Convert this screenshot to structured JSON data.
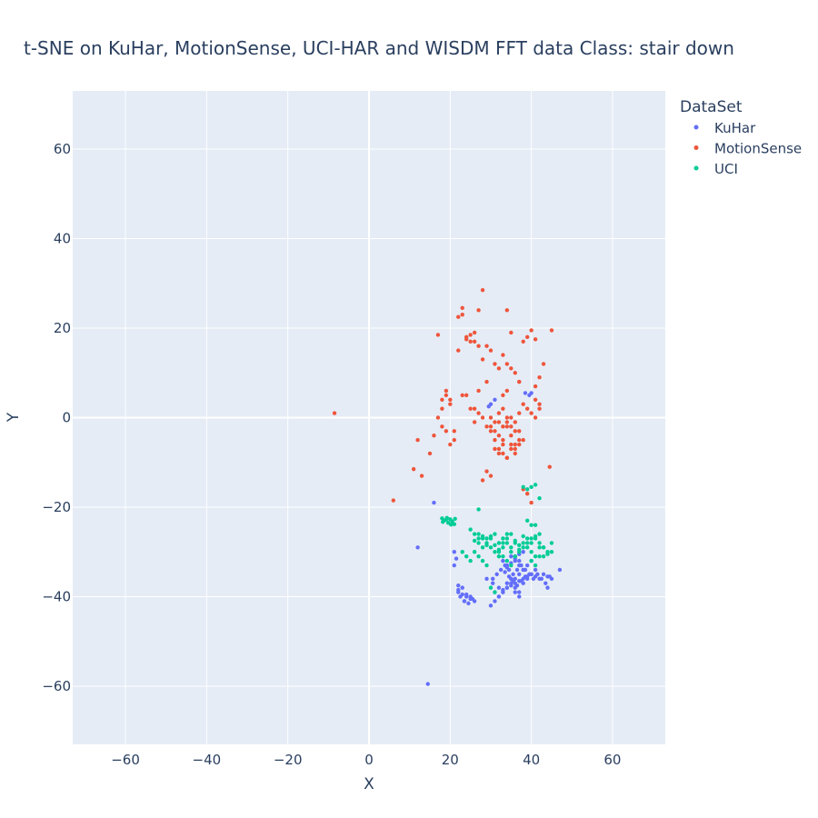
{
  "chart_data": {
    "type": "scatter",
    "title": "t-SNE on KuHar, MotionSense, UCI-HAR and WISDM   FFT data   Class: stair down",
    "xlabel": "X",
    "ylabel": "Y",
    "xlim": [
      -73,
      73
    ],
    "ylim": [
      -73,
      73
    ],
    "xticks": [
      -60,
      -40,
      -20,
      0,
      20,
      40,
      60
    ],
    "yticks": [
      -60,
      -40,
      -20,
      0,
      20,
      40,
      60
    ],
    "grid": true,
    "legend": {
      "title": "DataSet",
      "placement": "top-right"
    },
    "series": [
      {
        "name": "KuHar",
        "color": "#636efa",
        "x": [
          14.5,
          16,
          12,
          30,
          31,
          29.5,
          38.5,
          39.5,
          40,
          29,
          30.5,
          22,
          23,
          24,
          25,
          26,
          22,
          22.5,
          23.5,
          24.5,
          25.5,
          23,
          24,
          25,
          22,
          23.5,
          21,
          21.5,
          21,
          30,
          31,
          32,
          33,
          34,
          35,
          36,
          37,
          38,
          39,
          40,
          41,
          42,
          43,
          44,
          45,
          30.5,
          31.5,
          32.5,
          33.5,
          34.5,
          35.5,
          36.5,
          37.5,
          38.5,
          39.5,
          40.5,
          41.5,
          42.5,
          43.5,
          44.5,
          31,
          32,
          33,
          34,
          35,
          36,
          37,
          38,
          39,
          40,
          41,
          33,
          34,
          35,
          36,
          37,
          38,
          32,
          33,
          34,
          35,
          36,
          37,
          38,
          39,
          40,
          33.5,
          34.5,
          35.5,
          36.5,
          37.5,
          38.5,
          34,
          35,
          36,
          37,
          44,
          47,
          36,
          37,
          38,
          35,
          36,
          37
        ],
        "y": [
          -59.5,
          -19,
          -29,
          3,
          4,
          2.5,
          5.5,
          5,
          5.5,
          -36,
          -37,
          -38.5,
          -39.5,
          -40,
          -40.5,
          -41,
          -39,
          -40,
          -41,
          -41.5,
          -40.5,
          -38,
          -39.5,
          -40,
          -37.5,
          -41,
          -30,
          -31.5,
          -33,
          -42,
          -41,
          -40,
          -39,
          -38,
          -37.5,
          -37,
          -36.5,
          -36,
          -35.5,
          -35,
          -35.5,
          -36,
          -35,
          -35.5,
          -36,
          -36,
          -35,
          -34,
          -33,
          -34,
          -35,
          -34,
          -33,
          -34,
          -35,
          -36,
          -35,
          -36,
          -37,
          -35.5,
          -39,
          -38,
          -38.5,
          -37,
          -36,
          -38,
          -39,
          -37,
          -36,
          -35,
          -34,
          -32,
          -33,
          -31,
          -32,
          -33,
          -34,
          -40,
          -39,
          -38,
          -37,
          -36,
          -35,
          -34,
          -33,
          -32,
          -34.5,
          -35.5,
          -36.5,
          -37.5,
          -36.5,
          -35.5,
          -33.5,
          -32.5,
          -31.5,
          -30.5,
          -38,
          -34,
          -31,
          -32,
          -30,
          -36,
          -39,
          -40
        ]
      },
      {
        "name": "MotionSense",
        "color": "#ef553b",
        "x": [
          -8.5,
          6,
          13,
          11,
          12,
          15,
          16,
          17,
          18,
          19,
          20,
          21,
          22,
          23,
          24,
          25,
          26,
          27,
          28,
          29,
          30,
          31,
          32,
          33,
          34,
          35,
          36,
          37,
          38,
          39,
          40,
          41,
          42,
          43,
          44.5,
          45,
          24,
          25,
          26,
          27,
          22,
          23,
          28,
          34,
          35,
          41,
          18,
          19,
          20,
          23,
          26,
          27,
          29,
          33,
          34,
          37,
          41,
          42,
          17,
          18,
          19,
          20,
          21,
          24,
          25,
          26,
          27,
          28,
          29,
          30,
          31,
          32,
          33,
          34,
          35,
          36,
          37,
          38,
          39,
          40,
          41,
          42,
          30,
          31,
          32,
          33,
          34,
          35,
          36,
          37,
          38,
          31,
          32,
          33,
          34,
          35,
          36,
          37,
          32,
          33,
          34,
          35,
          36,
          30,
          31,
          32,
          33,
          34,
          35,
          36,
          37,
          29,
          30,
          28,
          38,
          39,
          40
        ],
        "y": [
          1,
          -18.5,
          -13,
          -11.5,
          -5,
          -8,
          -4,
          18.5,
          -2,
          5,
          -6,
          -3,
          22.5,
          24.5,
          17.5,
          18.5,
          17,
          24,
          28.5,
          16,
          15,
          12,
          11,
          14,
          24,
          19,
          10,
          8,
          17,
          18,
          19.5,
          17.5,
          9,
          12,
          -11,
          19.5,
          18,
          17,
          19,
          16,
          15,
          23,
          13,
          12,
          11,
          7,
          4,
          6,
          3,
          5,
          2,
          6,
          8,
          5,
          6,
          8,
          4,
          3,
          0,
          2,
          -3,
          4,
          -5,
          5,
          2,
          -1,
          1,
          0,
          -2,
          -3,
          -1,
          1,
          2,
          0,
          -2,
          -1,
          1,
          3,
          2,
          1,
          0,
          2,
          0,
          -3,
          -1,
          -5,
          -2,
          -4,
          -6,
          -3,
          -5,
          -7,
          -8,
          -6,
          -9,
          -7,
          -8,
          -6,
          -4,
          -2,
          -1,
          0,
          -3,
          -2,
          -5,
          -7,
          -8,
          -9,
          -6,
          -7,
          -5,
          -12,
          -13,
          -14,
          -16,
          -17,
          -19
        ]
      },
      {
        "name": "UCI",
        "color": "#00cc96",
        "x": [
          18,
          18.5,
          19,
          19.5,
          20,
          20.5,
          21,
          18.2,
          19.2,
          20.2,
          21.2,
          27,
          38,
          39,
          40,
          41,
          42,
          25,
          26,
          27,
          28,
          29,
          30,
          31,
          32,
          33,
          34,
          35,
          36,
          37,
          38,
          39,
          40,
          41,
          42,
          43,
          44,
          45,
          26,
          27,
          28,
          29,
          30,
          31,
          32,
          33,
          34,
          35,
          36,
          37,
          38,
          39,
          40,
          41,
          42,
          43,
          44,
          27,
          28,
          29,
          30,
          31,
          32,
          33,
          34,
          35,
          36,
          37,
          38,
          39,
          40,
          41,
          42,
          43,
          23,
          24,
          25,
          26,
          27,
          28,
          29,
          32,
          33,
          34,
          35,
          36,
          40,
          41,
          42,
          45,
          30,
          31,
          39,
          40,
          41
        ],
        "y": [
          -22.5,
          -23,
          -22.8,
          -23.5,
          -22.7,
          -23.2,
          -23.8,
          -23.3,
          -22.4,
          -23.9,
          -22.6,
          -20.5,
          -15.5,
          -16,
          -15.5,
          -15,
          -18,
          -25,
          -26,
          -27,
          -26.5,
          -28,
          -27,
          -26,
          -28,
          -27,
          -26,
          -29,
          -27.5,
          -28.5,
          -26.5,
          -27,
          -28,
          -27,
          -26,
          -29,
          -30,
          -28,
          -27.5,
          -28,
          -29,
          -27,
          -26.5,
          -28.5,
          -29.5,
          -28,
          -27,
          -26,
          -28,
          -30,
          -29,
          -28,
          -27,
          -26.5,
          -28,
          -29,
          -30.5,
          -26,
          -27,
          -28.5,
          -29,
          -30,
          -31,
          -29,
          -28,
          -30,
          -31,
          -29.5,
          -28,
          -29,
          -30,
          -31,
          -29,
          -31,
          -30,
          -31,
          -32,
          -30,
          -31,
          -32,
          -33,
          -30,
          -31,
          -32,
          -33,
          -31,
          -32,
          -33,
          -31,
          -30,
          -38,
          -39,
          -23,
          -24,
          -24
        ]
      }
    ]
  }
}
